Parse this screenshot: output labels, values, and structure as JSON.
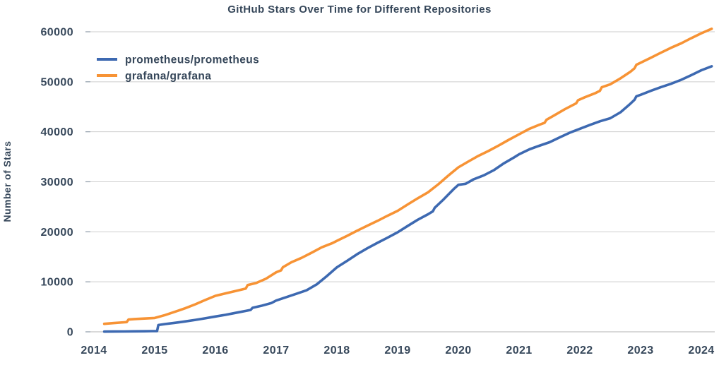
{
  "chart_data": {
    "type": "line",
    "title": "GitHub Stars Over Time for Different Repositories",
    "xlabel": "",
    "ylabel": "Number of Stars",
    "x_ticks": [
      2014,
      2015,
      2016,
      2017,
      2018,
      2019,
      2020,
      2021,
      2022,
      2023,
      2024
    ],
    "y_ticks": [
      0,
      10000,
      20000,
      30000,
      40000,
      50000,
      60000
    ],
    "xlim": [
      2013.94,
      2024.22
    ],
    "ylim": [
      0,
      60000
    ],
    "grid": "horizontal-only",
    "legend_position": "upper-left-inside",
    "colors": {
      "prometheus": "#3d69b1",
      "grafana": "#f79335",
      "text": "#36475a",
      "grid": "#cdcdcd",
      "baseline": "#b3b3b3",
      "tick": "#8d9aa7",
      "background": "#ffffff"
    },
    "series": [
      {
        "name": "prometheus/prometheus",
        "color_key": "prometheus",
        "points": [
          [
            2014.17,
            40
          ],
          [
            2014.33,
            60
          ],
          [
            2014.5,
            75
          ],
          [
            2014.67,
            95
          ],
          [
            2014.83,
            115
          ],
          [
            2014.96,
            140
          ],
          [
            2015.04,
            150
          ],
          [
            2015.06,
            1350
          ],
          [
            2015.17,
            1550
          ],
          [
            2015.33,
            1800
          ],
          [
            2015.5,
            2080
          ],
          [
            2015.67,
            2380
          ],
          [
            2015.83,
            2700
          ],
          [
            2016.0,
            3060
          ],
          [
            2016.17,
            3400
          ],
          [
            2016.33,
            3780
          ],
          [
            2016.5,
            4180
          ],
          [
            2016.58,
            4380
          ],
          [
            2016.61,
            4800
          ],
          [
            2016.75,
            5180
          ],
          [
            2016.92,
            5750
          ],
          [
            2017.0,
            6250
          ],
          [
            2017.17,
            6950
          ],
          [
            2017.33,
            7600
          ],
          [
            2017.5,
            8300
          ],
          [
            2017.67,
            9500
          ],
          [
            2017.83,
            11100
          ],
          [
            2018.0,
            12900
          ],
          [
            2018.17,
            14200
          ],
          [
            2018.33,
            15500
          ],
          [
            2018.5,
            16700
          ],
          [
            2018.67,
            17800
          ],
          [
            2018.83,
            18800
          ],
          [
            2019.0,
            19900
          ],
          [
            2019.17,
            21200
          ],
          [
            2019.33,
            22400
          ],
          [
            2019.5,
            23500
          ],
          [
            2019.58,
            24100
          ],
          [
            2019.61,
            24800
          ],
          [
            2019.75,
            26400
          ],
          [
            2019.92,
            28500
          ],
          [
            2020.0,
            29400
          ],
          [
            2020.12,
            29600
          ],
          [
            2020.25,
            30500
          ],
          [
            2020.42,
            31300
          ],
          [
            2020.58,
            32300
          ],
          [
            2020.75,
            33700
          ],
          [
            2020.92,
            34900
          ],
          [
            2021.0,
            35500
          ],
          [
            2021.17,
            36500
          ],
          [
            2021.33,
            37200
          ],
          [
            2021.5,
            37900
          ],
          [
            2021.67,
            38900
          ],
          [
            2021.83,
            39800
          ],
          [
            2022.0,
            40600
          ],
          [
            2022.17,
            41400
          ],
          [
            2022.33,
            42100
          ],
          [
            2022.5,
            42700
          ],
          [
            2022.67,
            43900
          ],
          [
            2022.83,
            45600
          ],
          [
            2022.9,
            46400
          ],
          [
            2022.93,
            47100
          ],
          [
            2023.0,
            47400
          ],
          [
            2023.17,
            48200
          ],
          [
            2023.33,
            48900
          ],
          [
            2023.5,
            49600
          ],
          [
            2023.67,
            50400
          ],
          [
            2023.83,
            51300
          ],
          [
            2024.0,
            52300
          ],
          [
            2024.17,
            53100
          ]
        ]
      },
      {
        "name": "grafana/grafana",
        "color_key": "grafana",
        "points": [
          [
            2014.17,
            1600
          ],
          [
            2014.33,
            1750
          ],
          [
            2014.5,
            1900
          ],
          [
            2014.54,
            1950
          ],
          [
            2014.57,
            2450
          ],
          [
            2014.67,
            2560
          ],
          [
            2014.83,
            2660
          ],
          [
            2015.0,
            2760
          ],
          [
            2015.17,
            3350
          ],
          [
            2015.33,
            4000
          ],
          [
            2015.5,
            4700
          ],
          [
            2015.67,
            5500
          ],
          [
            2015.83,
            6350
          ],
          [
            2016.0,
            7200
          ],
          [
            2016.17,
            7700
          ],
          [
            2016.33,
            8150
          ],
          [
            2016.5,
            8650
          ],
          [
            2016.53,
            9350
          ],
          [
            2016.67,
            9750
          ],
          [
            2016.83,
            10600
          ],
          [
            2017.0,
            11900
          ],
          [
            2017.08,
            12300
          ],
          [
            2017.11,
            12900
          ],
          [
            2017.25,
            13900
          ],
          [
            2017.42,
            14800
          ],
          [
            2017.58,
            15800
          ],
          [
            2017.75,
            16900
          ],
          [
            2017.92,
            17700
          ],
          [
            2018.0,
            18200
          ],
          [
            2018.17,
            19200
          ],
          [
            2018.33,
            20200
          ],
          [
            2018.5,
            21200
          ],
          [
            2018.67,
            22200
          ],
          [
            2018.83,
            23200
          ],
          [
            2019.0,
            24200
          ],
          [
            2019.17,
            25500
          ],
          [
            2019.33,
            26700
          ],
          [
            2019.5,
            27900
          ],
          [
            2019.67,
            29500
          ],
          [
            2019.83,
            31200
          ],
          [
            2020.0,
            32900
          ],
          [
            2020.17,
            34100
          ],
          [
            2020.33,
            35200
          ],
          [
            2020.5,
            36200
          ],
          [
            2020.67,
            37300
          ],
          [
            2020.83,
            38400
          ],
          [
            2021.0,
            39500
          ],
          [
            2021.17,
            40600
          ],
          [
            2021.33,
            41400
          ],
          [
            2021.42,
            41800
          ],
          [
            2021.45,
            42400
          ],
          [
            2021.58,
            43300
          ],
          [
            2021.75,
            44500
          ],
          [
            2021.94,
            45700
          ],
          [
            2021.97,
            46300
          ],
          [
            2022.08,
            46900
          ],
          [
            2022.25,
            47700
          ],
          [
            2022.33,
            48200
          ],
          [
            2022.36,
            48900
          ],
          [
            2022.5,
            49500
          ],
          [
            2022.67,
            50700
          ],
          [
            2022.83,
            52000
          ],
          [
            2022.9,
            52700
          ],
          [
            2022.93,
            53400
          ],
          [
            2023.0,
            53800
          ],
          [
            2023.17,
            54800
          ],
          [
            2023.33,
            55800
          ],
          [
            2023.5,
            56800
          ],
          [
            2023.67,
            57700
          ],
          [
            2023.83,
            58700
          ],
          [
            2024.0,
            59700
          ],
          [
            2024.17,
            60600
          ]
        ]
      }
    ]
  }
}
